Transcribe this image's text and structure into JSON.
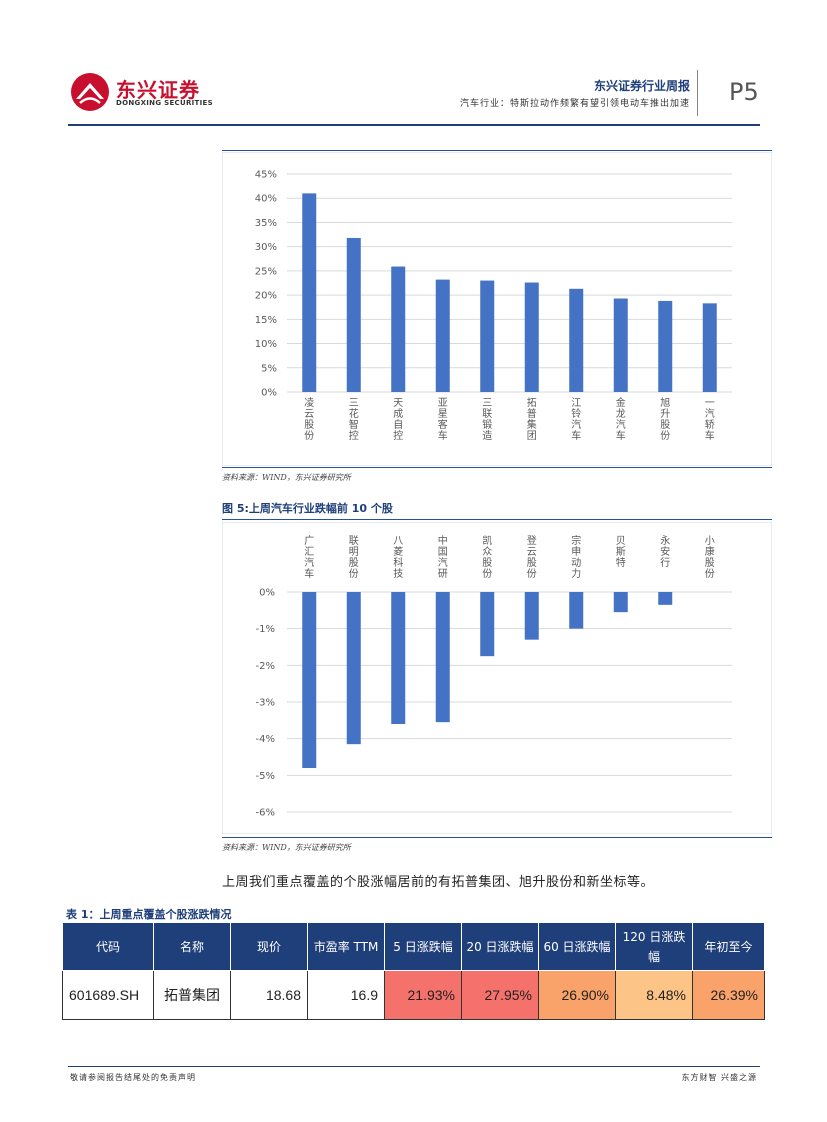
{
  "header": {
    "brand_cn": "东兴证券",
    "brand_en": "DONGXING SECURITIES",
    "report_title": "东兴证券行业周报",
    "report_subtitle": "汽车行业：特斯拉动作频繁有望引领电动车推出加速",
    "page": "P5"
  },
  "figure4": {
    "source": "资料来源：WIND，东兴证券研究所"
  },
  "figure5": {
    "title": "图 5:上周汽车行业跌幅前 10 个股",
    "source": "资料来源：WIND，东兴证券研究所"
  },
  "paragraph": "上周我们重点覆盖的个股涨幅居前的有拓普集团、旭升股份和新坐标等。",
  "table": {
    "title": "表 1：上周重点覆盖个股涨跌情况",
    "headers": [
      "代码",
      "名称",
      "现价",
      "市盈率 TTM",
      "5 日涨跌幅",
      "20 日涨跌幅",
      "60 日涨跌幅",
      "120 日涨跌幅",
      "年初至今"
    ],
    "rows": [
      [
        "601689.SH",
        "拓普集团",
        "18.68",
        "16.9",
        "21.93%",
        "27.95%",
        "26.90%",
        "8.48%",
        "26.39%"
      ]
    ]
  },
  "footer": {
    "left": "敬请参阅报告结尾处的免责声明",
    "right": "东方财智 兴盛之源"
  },
  "chart_data": [
    {
      "type": "bar",
      "categories": [
        "凌云股份",
        "三花智控",
        "天成自控",
        "亚星客车",
        "三联锻造",
        "拓普集团",
        "江铃汽车",
        "金龙汽车",
        "旭升股份",
        "一汽轿车"
      ],
      "values": [
        41.0,
        31.8,
        25.9,
        23.2,
        23.0,
        22.6,
        21.3,
        19.3,
        18.8,
        18.3
      ],
      "yticks": [
        "45%",
        "40%",
        "35%",
        "30%",
        "25%",
        "20%",
        "15%",
        "10%",
        "5%",
        "0%"
      ],
      "ylim": [
        0,
        45
      ],
      "grid": true,
      "color": "#4472c4"
    },
    {
      "type": "bar",
      "categories": [
        "广汇汽车",
        "联明股份",
        "八菱科技",
        "中国汽研",
        "凯众股份",
        "登云股份",
        "宗申动力",
        "贝斯特",
        "永安行",
        "小康股份"
      ],
      "values": [
        -4.8,
        -4.15,
        -3.6,
        -3.55,
        -1.75,
        -1.3,
        -1.0,
        -0.55,
        -0.35,
        0.0
      ],
      "yticks": [
        "0%",
        "-1%",
        "-2%",
        "-3%",
        "-4%",
        "-5%",
        "-6%"
      ],
      "ylim": [
        -6,
        0
      ],
      "grid": true,
      "color": "#4472c4"
    }
  ]
}
